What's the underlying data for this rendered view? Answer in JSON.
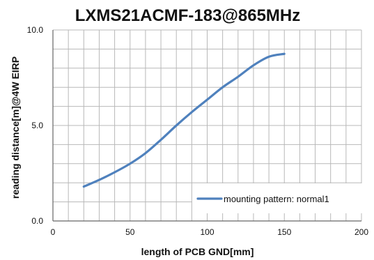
{
  "chart_data": {
    "type": "line",
    "title": "LXMS21ACMF-183@865MHz",
    "xlabel": "length of PCB GND[mm]",
    "ylabel": "reading distance[m]@4W EIRP",
    "xlim": [
      0,
      200
    ],
    "ylim": [
      0,
      10
    ],
    "x_ticks": [
      "0",
      "50",
      "100",
      "150",
      "200"
    ],
    "y_ticks": [
      "0.0",
      "5.0",
      "10.0"
    ],
    "grid": true,
    "legend_position": "bottom-right",
    "series": [
      {
        "name": "mounting pattern: normal1",
        "color": "#4f81bd",
        "x": [
          20,
          30,
          40,
          50,
          60,
          70,
          80,
          90,
          100,
          110,
          120,
          130,
          140,
          150
        ],
        "y": [
          1.8,
          2.15,
          2.55,
          3.0,
          3.55,
          4.25,
          5.0,
          5.7,
          6.35,
          7.0,
          7.55,
          8.15,
          8.6,
          8.75
        ]
      }
    ]
  }
}
